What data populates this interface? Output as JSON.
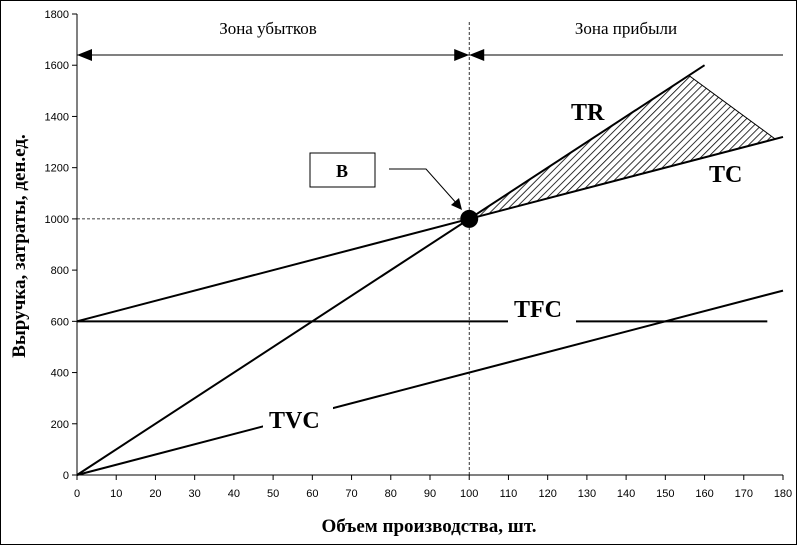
{
  "chart_data": {
    "type": "line",
    "title": "",
    "xlabel": "Объем производства, шт.",
    "ylabel": "Выручка, затраты, ден.ед.",
    "xlim": [
      0,
      180
    ],
    "ylim": [
      0,
      1800
    ],
    "x_ticks": [
      0,
      10,
      20,
      30,
      40,
      50,
      60,
      70,
      80,
      90,
      100,
      110,
      120,
      130,
      140,
      150,
      160,
      170,
      180
    ],
    "y_ticks": [
      0,
      200,
      400,
      600,
      800,
      1000,
      1200,
      1400,
      1600,
      1800
    ],
    "zones": {
      "loss": "Зона убытков",
      "profit": "Зона прибыли"
    },
    "break_even": {
      "label": "B",
      "x": 100,
      "y": 1000
    },
    "series": [
      {
        "name": "TR",
        "x": [
          0,
          160
        ],
        "y": [
          0,
          1600
        ]
      },
      {
        "name": "TC",
        "x": [
          0,
          180
        ],
        "y": [
          600,
          1320
        ]
      },
      {
        "name": "TFC",
        "x": [
          0,
          176
        ],
        "y": [
          600,
          600
        ]
      },
      {
        "name": "TVC",
        "x": [
          0,
          180
        ],
        "y": [
          0,
          720
        ]
      }
    ],
    "grid": false
  }
}
